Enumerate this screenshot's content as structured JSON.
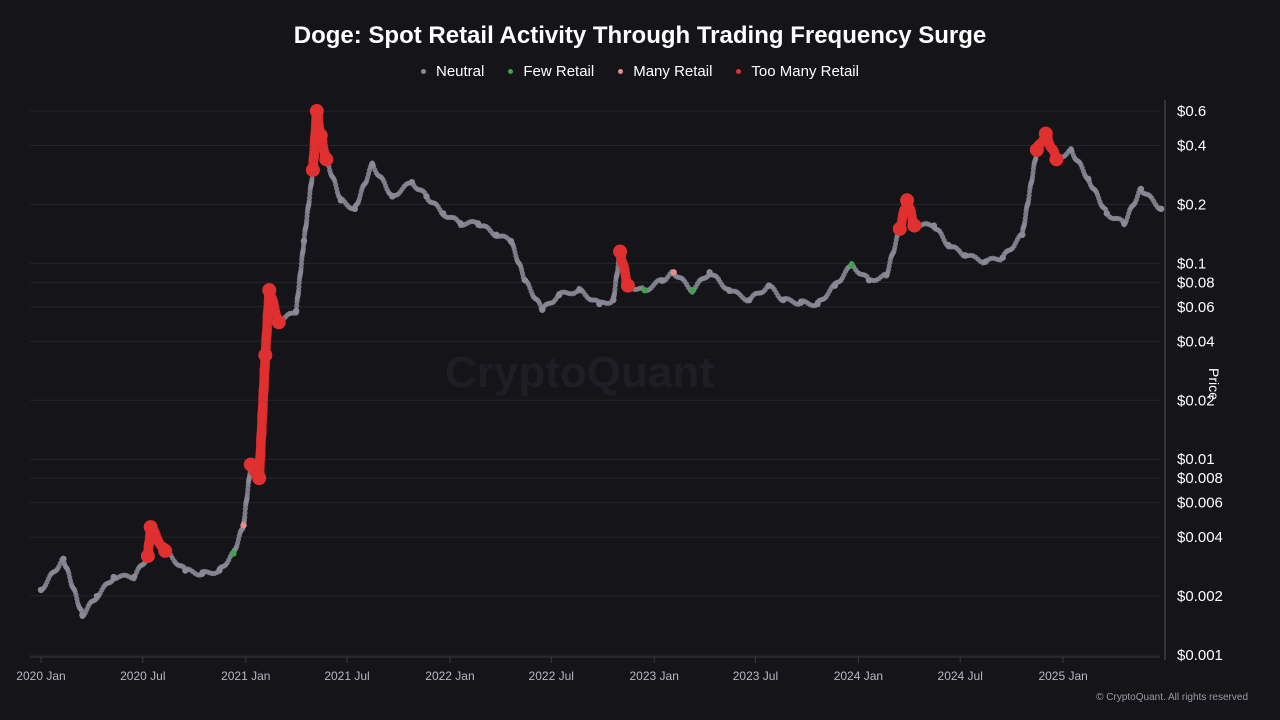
{
  "chart_data": {
    "type": "scatter",
    "title": "Doge: Spot Retail Activity Through Trading Frequency Surge",
    "ylabel": "Price",
    "xlabel": "",
    "yscale": "log",
    "ylim": [
      0.001,
      0.7
    ],
    "xlim": [
      "2019-12-20",
      "2025-07-15"
    ],
    "grid": true,
    "legend_position": "top",
    "watermark": "CryptoQuant",
    "x_ticks": [
      "2020 Jan",
      "2020 Jul",
      "2021 Jan",
      "2021 Jul",
      "2022 Jan",
      "2022 Jul",
      "2023 Jan",
      "2023 Jul",
      "2024 Jan",
      "2024 Jul",
      "2025 Jan"
    ],
    "x_tick_dates": [
      "2020-01-01",
      "2020-07-01",
      "2021-01-01",
      "2021-07-01",
      "2022-01-01",
      "2022-07-01",
      "2023-01-01",
      "2023-07-01",
      "2024-01-01",
      "2024-07-01",
      "2025-01-01"
    ],
    "y_ticks": [
      {
        "value": 0.6,
        "label": "$0.6"
      },
      {
        "value": 0.4,
        "label": "$0.4"
      },
      {
        "value": 0.2,
        "label": "$0.2"
      },
      {
        "value": 0.1,
        "label": "$0.1"
      },
      {
        "value": 0.08,
        "label": "$0.08"
      },
      {
        "value": 0.06,
        "label": "$0.06"
      },
      {
        "value": 0.04,
        "label": "$0.04"
      },
      {
        "value": 0.02,
        "label": "$0.02"
      },
      {
        "value": 0.01,
        "label": "$0.01"
      },
      {
        "value": 0.008,
        "label": "$0.008"
      },
      {
        "value": 0.006,
        "label": "$0.006"
      },
      {
        "value": 0.004,
        "label": "$0.004"
      },
      {
        "value": 0.002,
        "label": "$0.002"
      },
      {
        "value": 0.001,
        "label": "$0.001"
      }
    ],
    "series": [
      {
        "name": "Neutral",
        "key": "neutral",
        "color": "#8a8a96"
      },
      {
        "name": "Few Retail",
        "key": "few",
        "color": "#3fa34d"
      },
      {
        "name": "Many Retail",
        "key": "many",
        "color": "#e88b8b"
      },
      {
        "name": "Too Many Retail",
        "key": "toomany",
        "color": "#e03030"
      }
    ],
    "points": [
      [
        "2020-01-01",
        0.00215,
        "neutral"
      ],
      [
        "2020-02-10",
        0.0031,
        "neutral"
      ],
      [
        "2020-03-15",
        0.0016,
        "neutral"
      ],
      [
        "2020-04-10",
        0.002,
        "neutral"
      ],
      [
        "2020-05-10",
        0.0025,
        "neutral"
      ],
      [
        "2020-06-15",
        0.0025,
        "neutral"
      ],
      [
        "2020-07-10",
        0.0032,
        "toomany"
      ],
      [
        "2020-07-15",
        0.0045,
        "toomany"
      ],
      [
        "2020-08-10",
        0.0034,
        "toomany"
      ],
      [
        "2020-09-15",
        0.0027,
        "neutral"
      ],
      [
        "2020-10-15",
        0.0026,
        "neutral"
      ],
      [
        "2020-11-15",
        0.0027,
        "neutral"
      ],
      [
        "2020-12-10",
        0.0033,
        "few"
      ],
      [
        "2020-12-28",
        0.0046,
        "many"
      ],
      [
        "2021-01-10",
        0.0094,
        "toomany"
      ],
      [
        "2021-01-25",
        0.008,
        "toomany"
      ],
      [
        "2021-02-05",
        0.034,
        "toomany"
      ],
      [
        "2021-02-12",
        0.073,
        "toomany"
      ],
      [
        "2021-03-01",
        0.05,
        "toomany"
      ],
      [
        "2021-04-01",
        0.057,
        "neutral"
      ],
      [
        "2021-04-15",
        0.13,
        "neutral"
      ],
      [
        "2021-05-01",
        0.3,
        "toomany"
      ],
      [
        "2021-05-08",
        0.6,
        "toomany"
      ],
      [
        "2021-05-15",
        0.45,
        "toomany"
      ],
      [
        "2021-05-25",
        0.34,
        "toomany"
      ],
      [
        "2021-06-20",
        0.21,
        "neutral"
      ],
      [
        "2021-07-15",
        0.19,
        "neutral"
      ],
      [
        "2021-08-15",
        0.32,
        "neutral"
      ],
      [
        "2021-09-20",
        0.22,
        "neutral"
      ],
      [
        "2021-10-25",
        0.26,
        "neutral"
      ],
      [
        "2021-11-20",
        0.22,
        "neutral"
      ],
      [
        "2021-12-20",
        0.18,
        "neutral"
      ],
      [
        "2022-01-20",
        0.16,
        "neutral"
      ],
      [
        "2022-02-20",
        0.16,
        "neutral"
      ],
      [
        "2022-03-25",
        0.14,
        "neutral"
      ],
      [
        "2022-04-20",
        0.13,
        "neutral"
      ],
      [
        "2022-05-15",
        0.082,
        "neutral"
      ],
      [
        "2022-06-15",
        0.058,
        "neutral"
      ],
      [
        "2022-07-15",
        0.069,
        "neutral"
      ],
      [
        "2022-08-20",
        0.073,
        "neutral"
      ],
      [
        "2022-09-25",
        0.062,
        "neutral"
      ],
      [
        "2022-10-20",
        0.065,
        "neutral"
      ],
      [
        "2022-11-01",
        0.115,
        "toomany"
      ],
      [
        "2022-11-15",
        0.077,
        "toomany"
      ],
      [
        "2022-12-15",
        0.073,
        "few"
      ],
      [
        "2023-01-15",
        0.082,
        "neutral"
      ],
      [
        "2023-02-05",
        0.09,
        "many"
      ],
      [
        "2023-03-10",
        0.073,
        "few"
      ],
      [
        "2023-04-10",
        0.09,
        "neutral"
      ],
      [
        "2023-05-15",
        0.073,
        "neutral"
      ],
      [
        "2023-06-20",
        0.065,
        "neutral"
      ],
      [
        "2023-07-25",
        0.077,
        "neutral"
      ],
      [
        "2023-08-20",
        0.065,
        "neutral"
      ],
      [
        "2023-09-20",
        0.063,
        "neutral"
      ],
      [
        "2023-10-20",
        0.062,
        "neutral"
      ],
      [
        "2023-11-20",
        0.077,
        "neutral"
      ],
      [
        "2023-12-20",
        0.098,
        "few"
      ],
      [
        "2024-01-20",
        0.082,
        "neutral"
      ],
      [
        "2024-02-20",
        0.087,
        "neutral"
      ],
      [
        "2024-03-15",
        0.15,
        "toomany"
      ],
      [
        "2024-03-28",
        0.21,
        "toomany"
      ],
      [
        "2024-04-10",
        0.156,
        "toomany"
      ],
      [
        "2024-05-15",
        0.156,
        "neutral"
      ],
      [
        "2024-06-10",
        0.124,
        "neutral"
      ],
      [
        "2024-07-10",
        0.11,
        "neutral"
      ],
      [
        "2024-08-15",
        0.102,
        "neutral"
      ],
      [
        "2024-09-15",
        0.107,
        "neutral"
      ],
      [
        "2024-10-20",
        0.14,
        "neutral"
      ],
      [
        "2024-11-15",
        0.38,
        "toomany"
      ],
      [
        "2024-12-01",
        0.46,
        "toomany"
      ],
      [
        "2024-12-20",
        0.34,
        "toomany"
      ],
      [
        "2025-01-15",
        0.38,
        "neutral"
      ],
      [
        "2025-02-15",
        0.27,
        "neutral"
      ],
      [
        "2025-03-20",
        0.18,
        "neutral"
      ],
      [
        "2025-04-20",
        0.16,
        "neutral"
      ],
      [
        "2025-05-20",
        0.24,
        "neutral"
      ],
      [
        "2025-06-25",
        0.19,
        "neutral"
      ]
    ]
  },
  "footer": "© CryptoQuant. All rights reserved"
}
